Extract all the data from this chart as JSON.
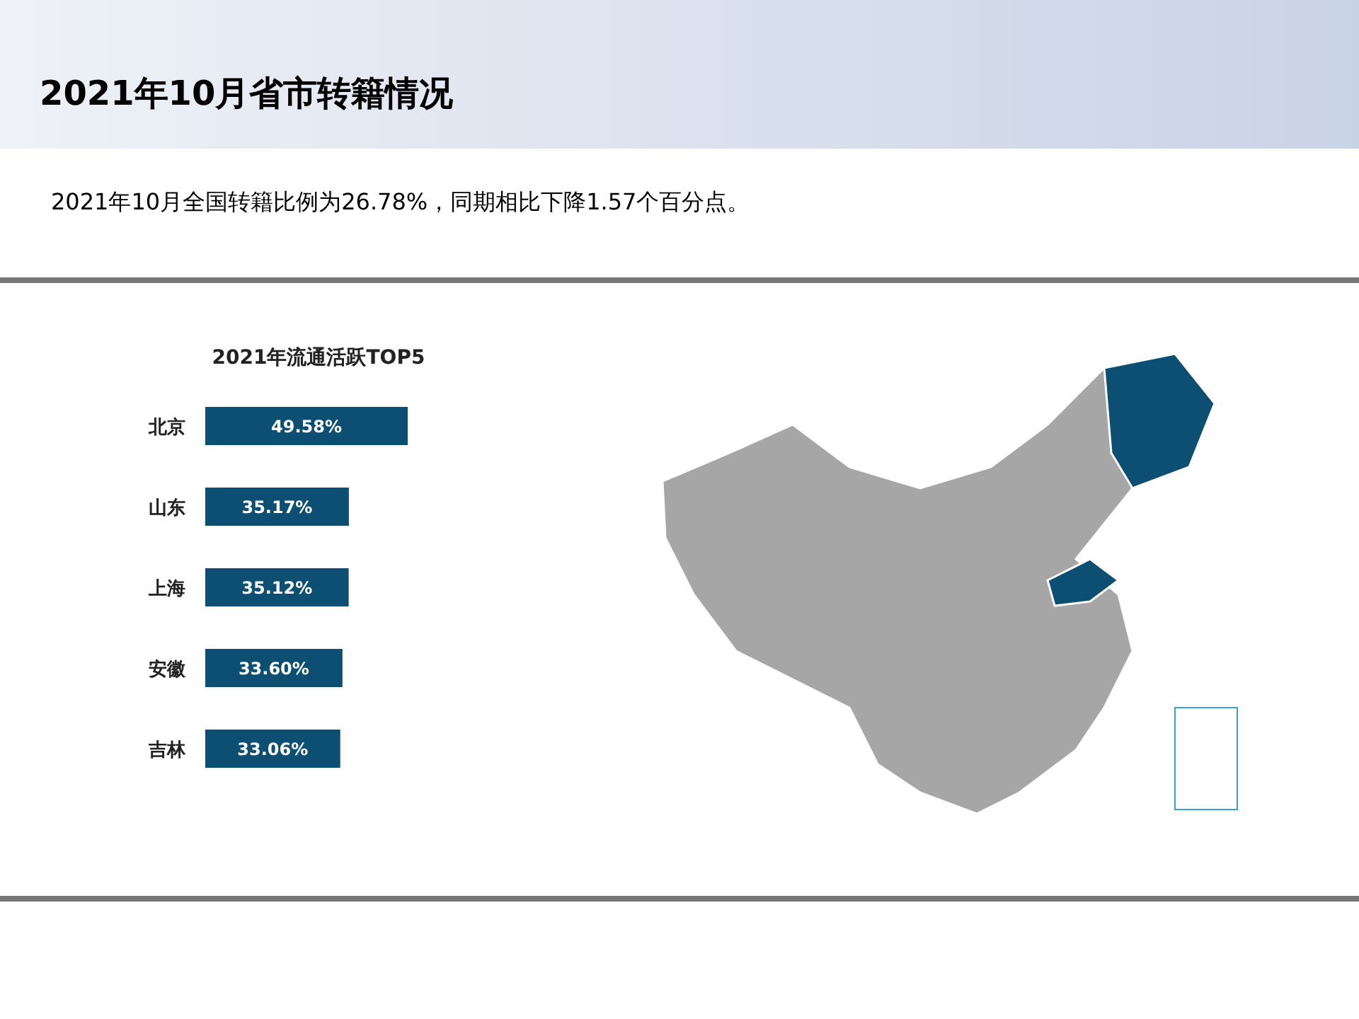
{
  "chart_data": {
    "type": "bar",
    "orientation": "horizontal",
    "title": "2021年流通活跃TOP5",
    "annotations": [
      "2021年10月省市转籍情况",
      "2021年10月全国转籍比例为26.78%，同期相比下降1.57个百分点。"
    ],
    "categories": [
      "北京",
      "山东",
      "上海",
      "安徽",
      "吉林"
    ],
    "values": [
      49.58,
      35.17,
      35.12,
      33.6,
      33.06
    ],
    "value_labels": [
      "49.58%",
      "35.17%",
      "35.12%",
      "33.60%",
      "33.06%"
    ],
    "color": "#0d4f73"
  }
}
